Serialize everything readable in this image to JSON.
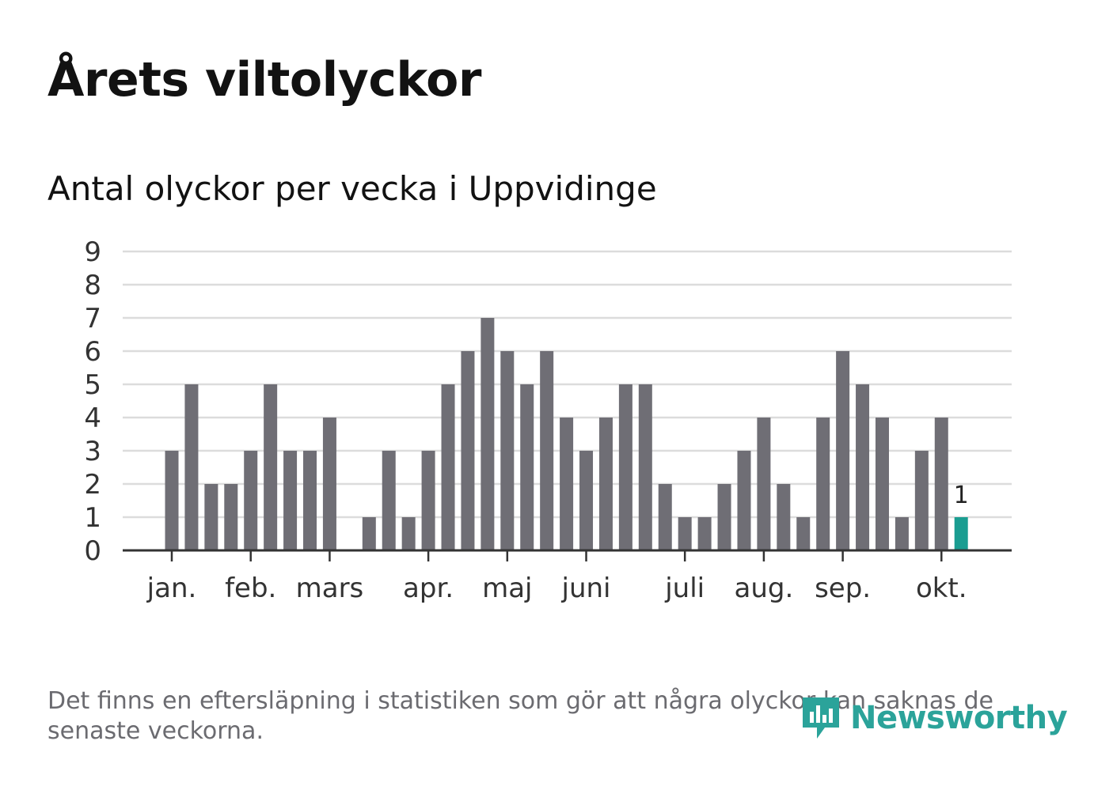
{
  "header": {
    "title": "Årets viltolyckor",
    "subtitle": "Antal olyckor per vecka i Uppvidinge"
  },
  "footer": {
    "note": "Det finns en eftersläpning i statistiken som gör att några olyckor kan saknas de senaste veckorna.",
    "brand": "Newsworthy"
  },
  "colors": {
    "bar": "#6f6e75",
    "highlight": "#1a9d91",
    "grid": "#dcdcdc",
    "axis": "#333333",
    "brand": "#2ba39a"
  },
  "chart_data": {
    "type": "bar",
    "title": "Antal olyckor per vecka i Uppvidinge",
    "xlabel": "",
    "ylabel": "",
    "ylim": [
      0,
      9
    ],
    "y_ticks": [
      0,
      1,
      2,
      3,
      4,
      5,
      6,
      7,
      8,
      9
    ],
    "weeks": [
      1,
      2,
      3,
      4,
      5,
      6,
      7,
      8,
      9,
      10,
      11,
      12,
      13,
      14,
      15,
      16,
      17,
      18,
      19,
      20,
      21,
      22,
      23,
      24,
      25,
      26,
      27,
      28,
      29,
      30,
      31,
      32,
      33,
      34,
      35,
      36,
      37,
      38,
      39,
      40,
      41
    ],
    "values": [
      3,
      5,
      2,
      2,
      3,
      5,
      3,
      3,
      4,
      0,
      1,
      3,
      1,
      3,
      5,
      6,
      7,
      6,
      5,
      6,
      4,
      3,
      4,
      5,
      5,
      2,
      1,
      1,
      2,
      3,
      4,
      2,
      1,
      4,
      6,
      5,
      4,
      1,
      3,
      4,
      1
    ],
    "highlight_index": 40,
    "highlight_label": "1",
    "month_labels": [
      {
        "label": "jan.",
        "week": 1
      },
      {
        "label": "feb.",
        "week": 5
      },
      {
        "label": "mars",
        "week": 9
      },
      {
        "label": "apr.",
        "week": 14
      },
      {
        "label": "maj",
        "week": 18
      },
      {
        "label": "juni",
        "week": 22
      },
      {
        "label": "juli",
        "week": 27
      },
      {
        "label": "aug.",
        "week": 31
      },
      {
        "label": "sep.",
        "week": 35
      },
      {
        "label": "okt.",
        "week": 40
      }
    ]
  }
}
